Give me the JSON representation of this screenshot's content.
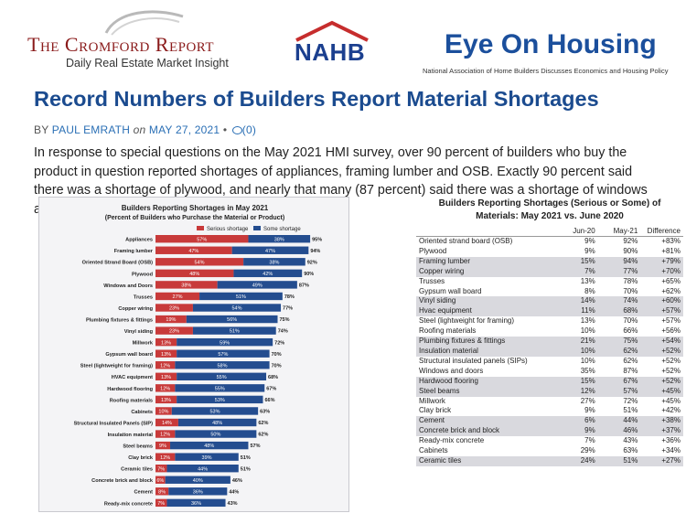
{
  "banner": {
    "cromford_title": "The Cromford Report",
    "cromford_subtitle": "Daily Real Estate Market Insight",
    "nahb": "NAHB",
    "eoh_title": "Eye On Housing",
    "eoh_subtitle": "National Association of Home Builders Discusses Economics and Housing Policy"
  },
  "article": {
    "headline": "Record Numbers of Builders Report Material Shortages",
    "by_label": "BY",
    "author": "PAUL EMRATH",
    "on_label": "on",
    "date": "MAY 27, 2021",
    "separator": "•",
    "comments": "(0)",
    "body": "In response to special questions on the May 2021 HMI survey, over 90 percent of builders who buy the product in question reported shortages of appliances, framing lumber and OSB.  Exactly 90 percent said there was a shortage of plywood, and nearly that many (87 percent) said there was a shortage of windows and doors."
  },
  "colors": {
    "serious": "#c83a3a",
    "some": "#244d8f",
    "headline": "#1b4b8f",
    "link": "#2a6fb5"
  },
  "chart_data": {
    "type": "bar",
    "orientation": "horizontal",
    "stacked": true,
    "title": "Builders Reporting Shortages in May 2021",
    "subtitle": "(Percent of Builders who Purchase the Material or Product)",
    "legend": [
      "Serious shortage",
      "Some shortage"
    ],
    "legend_position": "top",
    "categories": [
      "Appliances",
      "Framing lumber",
      "Oriented Strand Board (OSB)",
      "Plywood",
      "Windows and Doors",
      "Trusses",
      "Copper wiring",
      "Plumbing fixtures & fittings",
      "Vinyl siding",
      "Millwork",
      "Gypsum wall board",
      "Steel (lightweight for framing)",
      "HVAC equipment",
      "Hardwood flooring",
      "Roofing materials",
      "Cabinets",
      "Structural Insulated Panels (SIP)",
      "Insulation material",
      "Steel beams",
      "Clay brick",
      "Ceramic tiles",
      "Concrete brick and block",
      "Cement",
      "Ready-mix concrete"
    ],
    "series": [
      {
        "name": "Serious shortage",
        "values": [
          57,
          47,
          54,
          48,
          38,
          27,
          23,
          19,
          23,
          13,
          13,
          12,
          13,
          12,
          13,
          10,
          14,
          12,
          9,
          12,
          7,
          6,
          8,
          7
        ]
      },
      {
        "name": "Some shortage",
        "values": [
          38,
          47,
          38,
          42,
          49,
          51,
          54,
          56,
          51,
          59,
          57,
          58,
          55,
          55,
          53,
          53,
          48,
          50,
          48,
          39,
          44,
          40,
          36,
          36
        ]
      }
    ],
    "totals": [
      95,
      94,
      92,
      90,
      87,
      78,
      77,
      75,
      74,
      72,
      70,
      70,
      68,
      67,
      66,
      63,
      62,
      62,
      57,
      51,
      51,
      46,
      44,
      43
    ],
    "xlim": [
      0,
      100
    ]
  },
  "table": {
    "title_line1": "Builders Reporting Shortages (Serious or Some) of",
    "title_line2": "Materials: May 2021 vs. June 2020",
    "headers": [
      "",
      "Jun-20",
      "May-21",
      "Difference"
    ],
    "rows": [
      {
        "name": "Oriented strand board (OSB)",
        "jun20": "9%",
        "may21": "92%",
        "diff": "+83%",
        "shade": false
      },
      {
        "name": "Plywood",
        "jun20": "9%",
        "may21": "90%",
        "diff": "+81%",
        "shade": false
      },
      {
        "name": "Framing lumber",
        "jun20": "15%",
        "may21": "94%",
        "diff": "+79%",
        "shade": true
      },
      {
        "name": "Copper wiring",
        "jun20": "7%",
        "may21": "77%",
        "diff": "+70%",
        "shade": true
      },
      {
        "name": "Trusses",
        "jun20": "13%",
        "may21": "78%",
        "diff": "+65%",
        "shade": false
      },
      {
        "name": "Gypsum wall board",
        "jun20": "8%",
        "may21": "70%",
        "diff": "+62%",
        "shade": false
      },
      {
        "name": "Vinyl siding",
        "jun20": "14%",
        "may21": "74%",
        "diff": "+60%",
        "shade": true
      },
      {
        "name": "Hvac equipment",
        "jun20": "11%",
        "may21": "68%",
        "diff": "+57%",
        "shade": true
      },
      {
        "name": "Steel (lightweight for framing)",
        "jun20": "13%",
        "may21": "70%",
        "diff": "+57%",
        "shade": false
      },
      {
        "name": "Roofing materials",
        "jun20": "10%",
        "may21": "66%",
        "diff": "+56%",
        "shade": false
      },
      {
        "name": "Plumbing fixtures & fittings",
        "jun20": "21%",
        "may21": "75%",
        "diff": "+54%",
        "shade": true
      },
      {
        "name": "Insulation material",
        "jun20": "10%",
        "may21": "62%",
        "diff": "+52%",
        "shade": true
      },
      {
        "name": "Structural insulated panels (SIPs)",
        "jun20": "10%",
        "may21": "62%",
        "diff": "+52%",
        "shade": false
      },
      {
        "name": "Windows and doors",
        "jun20": "35%",
        "may21": "87%",
        "diff": "+52%",
        "shade": false
      },
      {
        "name": "Hardwood flooring",
        "jun20": "15%",
        "may21": "67%",
        "diff": "+52%",
        "shade": true
      },
      {
        "name": "Steel beams",
        "jun20": "12%",
        "may21": "57%",
        "diff": "+45%",
        "shade": true
      },
      {
        "name": "Millwork",
        "jun20": "27%",
        "may21": "72%",
        "diff": "+45%",
        "shade": false
      },
      {
        "name": "Clay brick",
        "jun20": "9%",
        "may21": "51%",
        "diff": "+42%",
        "shade": false
      },
      {
        "name": "Cement",
        "jun20": "6%",
        "may21": "44%",
        "diff": "+38%",
        "shade": true
      },
      {
        "name": "Concrete brick and block",
        "jun20": "9%",
        "may21": "46%",
        "diff": "+37%",
        "shade": true
      },
      {
        "name": "Ready-mix concrete",
        "jun20": "7%",
        "may21": "43%",
        "diff": "+36%",
        "shade": false
      },
      {
        "name": "Cabinets",
        "jun20": "29%",
        "may21": "63%",
        "diff": "+34%",
        "shade": false
      },
      {
        "name": "Ceramic tiles",
        "jun20": "24%",
        "may21": "51%",
        "diff": "+27%",
        "shade": true
      }
    ]
  }
}
